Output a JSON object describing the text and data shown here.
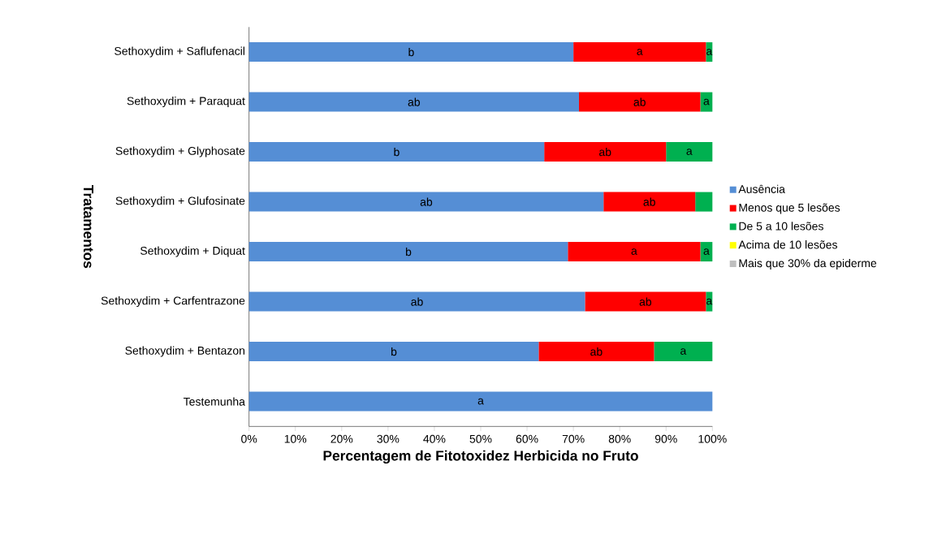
{
  "chart_data": {
    "type": "bar",
    "orientation": "horizontal",
    "stacked": true,
    "xlabel": "Percentagem de Fitotoxidez Herbicida no Fruto",
    "ylabel": "Tratamentos",
    "categories": [
      "Sethoxydim + Saflufenacil",
      "Sethoxydim + Paraquat",
      "Sethoxydim + Glyphosate",
      "Sethoxydim + Glufosinate",
      "Sethoxydim + Diquat",
      "Sethoxydim + Carfentrazone",
      "Sethoxydim + Bentazon",
      "Testemunha"
    ],
    "series": [
      {
        "name": "Ausência",
        "color": "#558ed5",
        "values": [
          70.0,
          71.2,
          63.7,
          76.5,
          68.8,
          72.5,
          62.5,
          100
        ],
        "value_labels": [
          "b",
          "ab",
          "b",
          "ab",
          "b",
          "ab",
          "b",
          "a"
        ]
      },
      {
        "name": "Menos que 5 lesões",
        "color": "#ff0000",
        "values": [
          28.6,
          26.2,
          26.3,
          19.8,
          28.6,
          26.1,
          24.9,
          0
        ],
        "value_labels": [
          "a",
          "ab",
          "ab",
          "ab",
          "a",
          "ab",
          "ab",
          null
        ]
      },
      {
        "name": "De 5 a 10 lesões",
        "color": "#00b050",
        "values": [
          1.4,
          2.6,
          10.0,
          3.7,
          2.6,
          1.4,
          12.6,
          0
        ],
        "value_labels": [
          "a",
          "a",
          "a",
          null,
          "a",
          "a",
          "a",
          null
        ]
      },
      {
        "name": "Acima de 10 lesões",
        "color": "#ffff00",
        "values": [
          0,
          0,
          0,
          0,
          0,
          0,
          0,
          0
        ]
      },
      {
        "name": "Mais que 30% da epiderme",
        "color": "#bfbfbf",
        "values": [
          0,
          0,
          0,
          0,
          0,
          0,
          0,
          0
        ]
      }
    ],
    "xlim": [
      0,
      100
    ],
    "xticks": [
      {
        "value": 0,
        "label": "0%"
      },
      {
        "value": 10,
        "label": "10%"
      },
      {
        "value": 20,
        "label": "20%"
      },
      {
        "value": 30,
        "label": "30%"
      },
      {
        "value": 40,
        "label": "40%"
      },
      {
        "value": 50,
        "label": "50%"
      },
      {
        "value": 60,
        "label": "60%"
      },
      {
        "value": 70,
        "label": "70%"
      },
      {
        "value": 80,
        "label": "80%"
      },
      {
        "value": 90,
        "label": "90%"
      },
      {
        "value": 100,
        "label": "100%"
      }
    ],
    "grid": false,
    "legend": "right"
  }
}
